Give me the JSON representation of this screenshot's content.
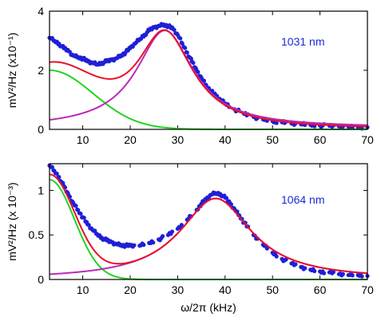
{
  "colors": {
    "points": "#1f1fd6",
    "total_fit": "#e8102a",
    "background_fit": "#1ed61e",
    "resonance_fit": "#b82bb8",
    "annotation": "#1a2bd6"
  },
  "chart_data": [
    {
      "type": "scatter",
      "title": "",
      "annotation": "1031 nm",
      "xlabel": "",
      "ylabel": "mV²/Hz (x10⁻¹)",
      "xlim": [
        3,
        70
      ],
      "ylim": [
        0,
        4
      ],
      "xticks": [
        "10",
        "20",
        "30",
        "40",
        "50",
        "60",
        "70"
      ],
      "yticks": [
        "0",
        "2",
        "4"
      ],
      "model": {
        "bg_amp": 2.0,
        "bg_scale": 13,
        "res_f0": 27.3,
        "res_gamma": 7.3,
        "res_amp": 3.3,
        "res_offset": 0.05
      },
      "series": [
        {
          "name": "",
          "kind": "points",
          "x": [
            3,
            4,
            5,
            6,
            7,
            8,
            9,
            10,
            11,
            12,
            13,
            14,
            15,
            16,
            17,
            18,
            19,
            20,
            21,
            22,
            23,
            24,
            25,
            26,
            27,
            28,
            29,
            30,
            31,
            32,
            33,
            34,
            35,
            36,
            37,
            38,
            39,
            40,
            42,
            44,
            46,
            48,
            50,
            52,
            54,
            56,
            58,
            60,
            62,
            64,
            66,
            68,
            70
          ],
          "y": [
            3.1,
            3.0,
            2.9,
            2.75,
            2.65,
            2.5,
            2.45,
            2.4,
            2.3,
            2.25,
            2.2,
            2.25,
            2.3,
            2.35,
            2.4,
            2.5,
            2.6,
            2.75,
            2.9,
            3.05,
            3.2,
            3.35,
            3.45,
            3.5,
            3.55,
            3.5,
            3.4,
            3.2,
            2.9,
            2.6,
            2.3,
            2.0,
            1.75,
            1.5,
            1.3,
            1.15,
            1.0,
            0.88,
            0.68,
            0.53,
            0.42,
            0.34,
            0.28,
            0.24,
            0.2,
            0.17,
            0.15,
            0.13,
            0.12,
            0.1,
            0.09,
            0.08,
            0.07
          ]
        },
        {
          "name": "",
          "kind": "total_fit"
        },
        {
          "name": "",
          "kind": "background_fit"
        },
        {
          "name": "",
          "kind": "resonance_fit"
        }
      ]
    },
    {
      "type": "scatter",
      "title": "",
      "annotation": "1064 nm",
      "xlabel": "ω/2π (kHz)",
      "ylabel": "mV²/Hz (x 10⁻³)",
      "xlim": [
        3,
        70
      ],
      "ylim": [
        0,
        1.3
      ],
      "xticks": [
        "10",
        "20",
        "30",
        "40",
        "50",
        "60",
        "70"
      ],
      "yticks": [
        "0",
        "0.5",
        "1"
      ],
      "model": {
        "bg_amp": 1.12,
        "bg_scale": 7.4,
        "res_f0": 38,
        "res_gamma": 9.2,
        "res_amp": 0.91,
        "res_offset": 0.0
      },
      "series": [
        {
          "name": "",
          "kind": "points",
          "x": [
            3,
            4,
            5,
            6,
            7,
            8,
            9,
            10,
            11,
            12,
            13,
            14,
            15,
            16,
            17,
            18,
            19,
            20,
            22,
            24,
            26,
            28,
            30,
            32,
            34,
            35,
            36,
            37,
            38,
            39,
            40,
            41,
            42,
            43,
            44,
            46,
            48,
            50,
            52,
            54,
            56,
            58,
            60,
            62,
            64,
            66,
            68,
            70
          ],
          "y": [
            1.28,
            1.22,
            1.15,
            1.05,
            0.95,
            0.86,
            0.78,
            0.7,
            0.62,
            0.56,
            0.51,
            0.47,
            0.44,
            0.42,
            0.4,
            0.39,
            0.38,
            0.38,
            0.38,
            0.41,
            0.45,
            0.5,
            0.57,
            0.67,
            0.78,
            0.85,
            0.9,
            0.95,
            0.97,
            0.96,
            0.92,
            0.86,
            0.79,
            0.72,
            0.64,
            0.5,
            0.39,
            0.3,
            0.23,
            0.18,
            0.14,
            0.11,
            0.09,
            0.08,
            0.06,
            0.05,
            0.05,
            0.04
          ]
        },
        {
          "name": "",
          "kind": "total_fit"
        },
        {
          "name": "",
          "kind": "background_fit"
        },
        {
          "name": "",
          "kind": "resonance_fit"
        }
      ]
    }
  ]
}
